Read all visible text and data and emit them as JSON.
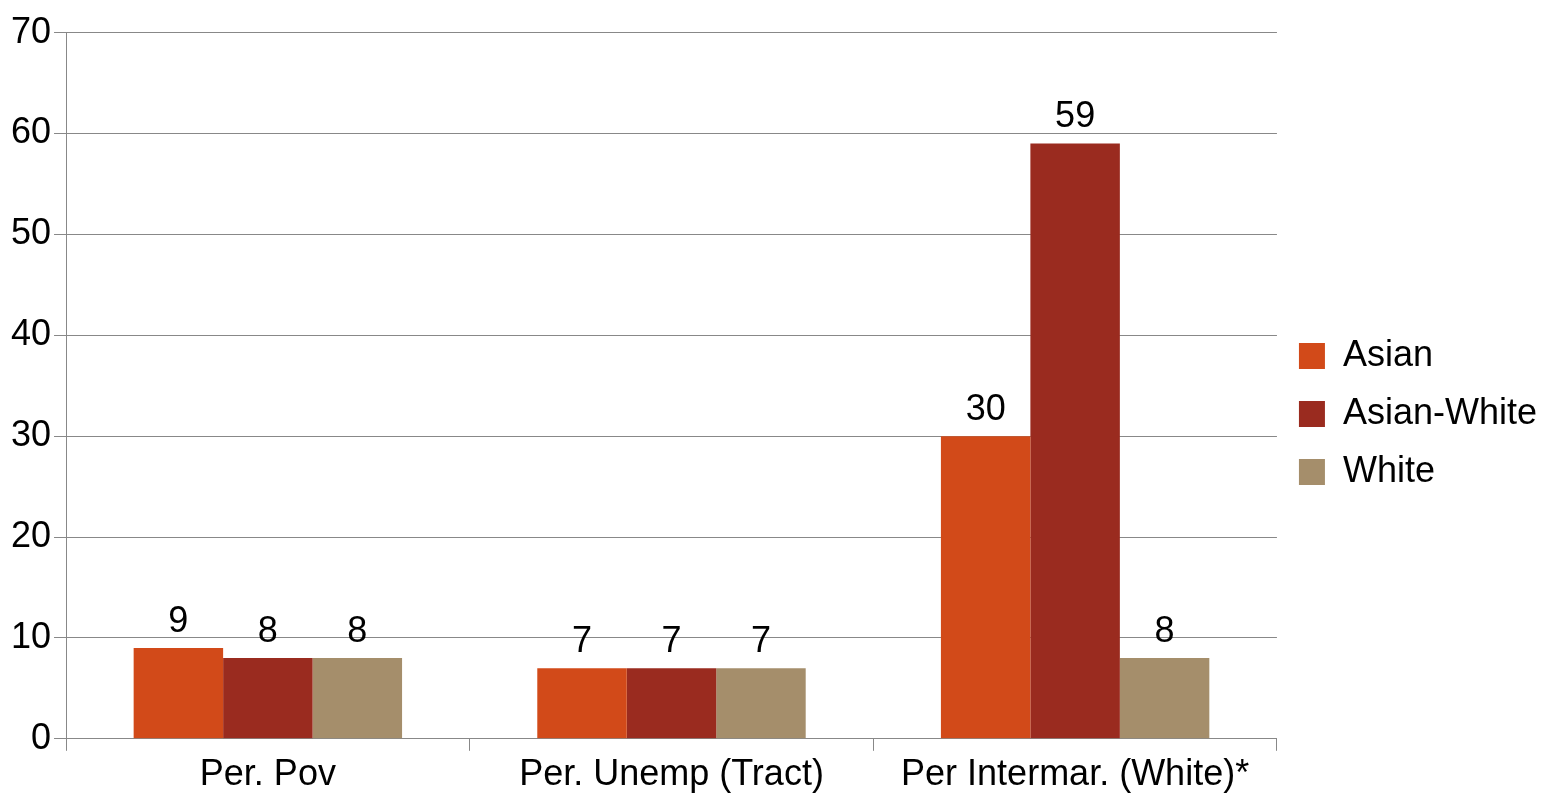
{
  "chart_data": {
    "type": "bar",
    "categories": [
      "Per. Pov",
      "Per. Unemp (Tract)",
      "Per Intermar. (White)*"
    ],
    "series": [
      {
        "name": "Asian",
        "color": "#d24a19",
        "values": [
          9,
          7,
          30
        ]
      },
      {
        "name": "Asian-White",
        "color": "#9a2b1f",
        "values": [
          8,
          7,
          59
        ]
      },
      {
        "name": "White",
        "color": "#a58e6b",
        "values": [
          8,
          7,
          8
        ]
      }
    ],
    "ylim": [
      0,
      70
    ],
    "yticks": [
      0,
      10,
      20,
      30,
      40,
      50,
      60,
      70
    ],
    "grid": "y",
    "legend": "right",
    "data_labels": true
  }
}
